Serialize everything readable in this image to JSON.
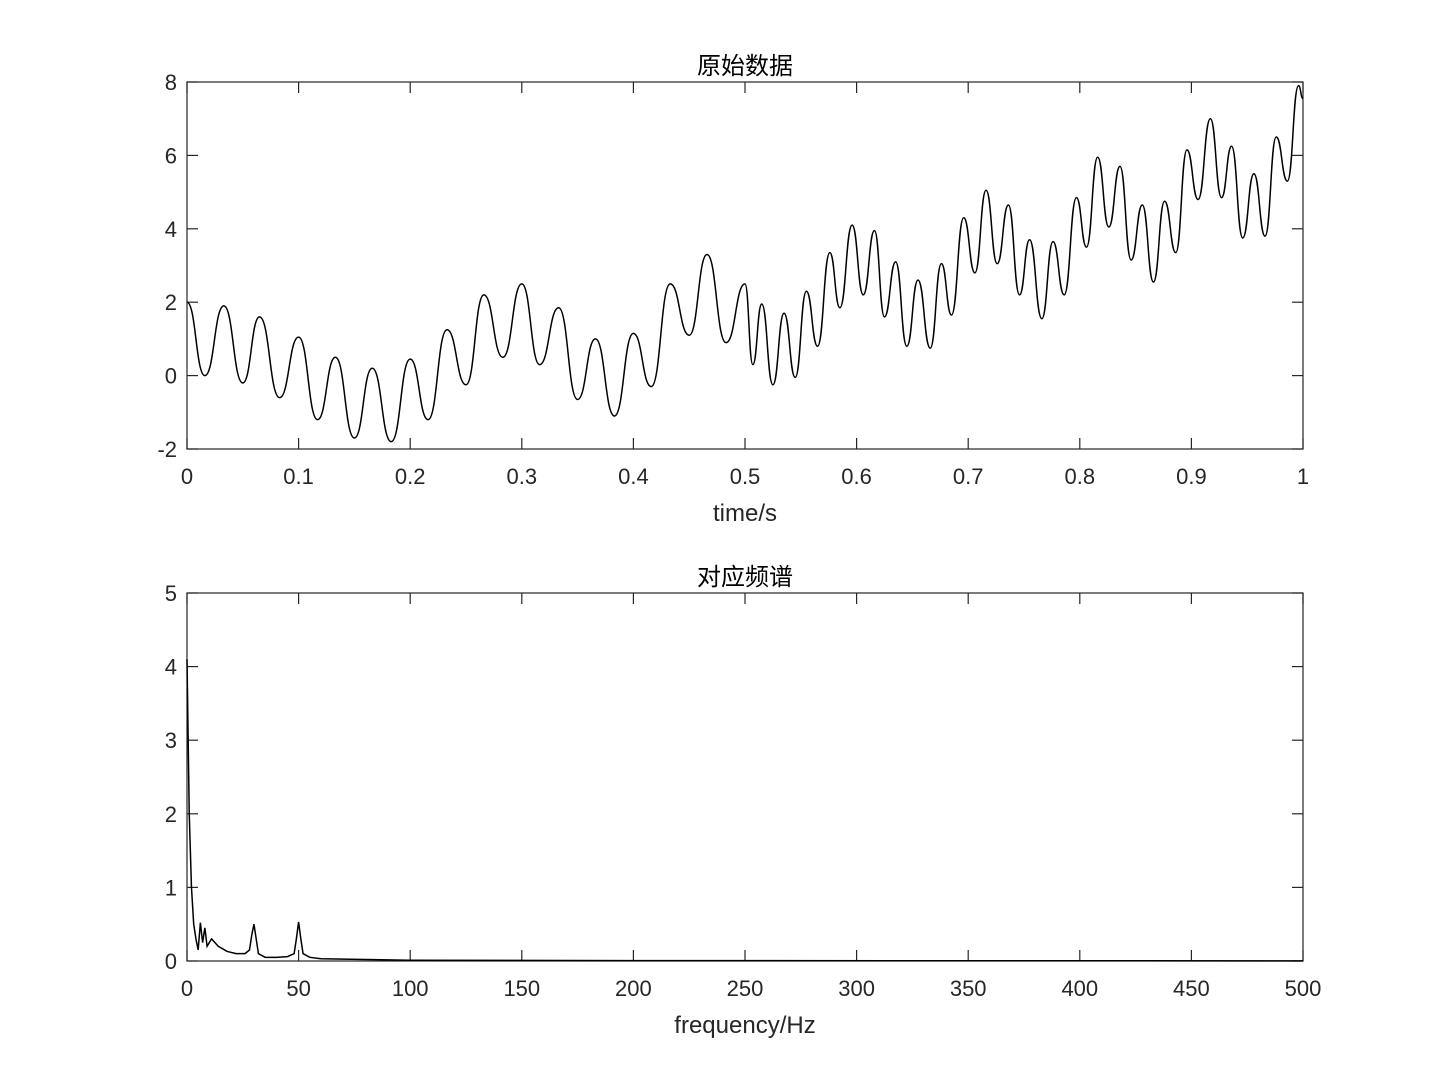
{
  "chart_data": [
    {
      "type": "line",
      "title": "原始数据",
      "xlabel": "time/s",
      "color": "#000000",
      "x": [
        0,
        0.016,
        0.033,
        0.05,
        0.065,
        0.083,
        0.1,
        0.117,
        0.133,
        0.15,
        0.166,
        0.183,
        0.2,
        0.216,
        0.233,
        0.25,
        0.266,
        0.283,
        0.3,
        0.316,
        0.333,
        0.35,
        0.366,
        0.383,
        0.4,
        0.416,
        0.433,
        0.45,
        0.466,
        0.483,
        0.5,
        0.507,
        0.515,
        0.525,
        0.535,
        0.545,
        0.555,
        0.565,
        0.576,
        0.585,
        0.596,
        0.606,
        0.616,
        0.625,
        0.635,
        0.645,
        0.655,
        0.666,
        0.676,
        0.685,
        0.696,
        0.706,
        0.716,
        0.726,
        0.736,
        0.746,
        0.755,
        0.766,
        0.776,
        0.786,
        0.797,
        0.806,
        0.816,
        0.826,
        0.836,
        0.846,
        0.856,
        0.866,
        0.876,
        0.886,
        0.896,
        0.906,
        0.917,
        0.927,
        0.936,
        0.946,
        0.956,
        0.966,
        0.976,
        0.986,
        0.996,
        1
      ],
      "values": [
        2.0,
        0,
        1.9,
        -0.2,
        1.6,
        -0.6,
        1.05,
        -1.2,
        0.5,
        -1.7,
        0.2,
        -1.8,
        0.45,
        -1.2,
        1.25,
        -0.25,
        2.2,
        0.5,
        2.5,
        0.3,
        1.85,
        -0.65,
        1.0,
        -1.1,
        1.15,
        -0.3,
        2.5,
        1.1,
        3.3,
        0.9,
        2.5,
        0.3,
        1.95,
        -0.25,
        1.7,
        -0.05,
        2.3,
        0.8,
        3.35,
        1.85,
        4.1,
        2.2,
        3.95,
        1.6,
        3.1,
        0.8,
        2.6,
        0.75,
        3.05,
        1.65,
        4.3,
        2.8,
        5.05,
        3.05,
        4.65,
        2.2,
        3.7,
        1.55,
        3.65,
        2.2,
        4.85,
        3.5,
        5.95,
        4.05,
        5.7,
        3.15,
        4.65,
        2.55,
        4.75,
        3.35,
        6.15,
        4.8,
        7.0,
        4.85,
        6.25,
        3.75,
        5.5,
        3.8,
        6.5,
        5.3,
        7.9,
        7.55
      ],
      "xlim": [
        0,
        1
      ],
      "ylim": [
        -2,
        8
      ],
      "xticks": [
        0,
        0.1,
        0.2,
        0.3,
        0.4,
        0.5,
        0.6,
        0.7,
        0.8,
        0.9,
        1
      ],
      "yticks": [
        -2,
        0,
        2,
        4,
        6,
        8
      ]
    },
    {
      "type": "line",
      "title": "对应频谱",
      "xlabel": "frequency/Hz",
      "color": "#000000",
      "x": [
        0,
        1,
        2,
        3,
        4,
        5,
        6,
        7,
        8,
        9,
        11,
        14,
        18,
        22,
        26,
        28,
        29,
        30,
        31,
        32,
        35,
        40,
        45,
        48,
        49,
        50,
        51,
        52,
        55,
        60,
        80,
        100,
        200,
        500
      ],
      "values": [
        4.1,
        2.0,
        1.0,
        0.5,
        0.3,
        0.15,
        0.52,
        0.25,
        0.45,
        0.2,
        0.3,
        0.2,
        0.13,
        0.1,
        0.1,
        0.15,
        0.35,
        0.5,
        0.3,
        0.1,
        0.05,
        0.05,
        0.06,
        0.1,
        0.3,
        0.53,
        0.3,
        0.1,
        0.05,
        0.03,
        0.02,
        0.01,
        0.005,
        0.002
      ],
      "xlim": [
        0,
        500
      ],
      "ylim": [
        0,
        5
      ],
      "xticks": [
        0,
        50,
        100,
        150,
        200,
        250,
        300,
        350,
        400,
        450,
        500
      ],
      "yticks": [
        0,
        1,
        2,
        3,
        4,
        5
      ]
    }
  ]
}
